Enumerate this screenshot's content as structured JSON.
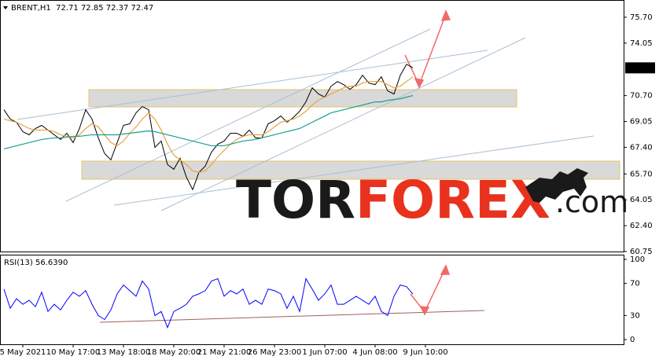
{
  "chart_data": [
    {
      "type": "line",
      "title": "BRENT,H1  72.71 72.85 72.37 72.47",
      "categories": [
        null,
        null,
        null,
        "5 May 2021",
        null,
        null,
        null,
        null,
        null,
        null,
        null,
        "10 May 17:00",
        null,
        null,
        null,
        null,
        null,
        null,
        null,
        "13 May 18:00",
        null,
        null,
        null,
        null,
        null,
        null,
        null,
        "18 May 20:00",
        null,
        null,
        null,
        null,
        null,
        null,
        null,
        "21 May 21:00",
        null,
        null,
        null,
        null,
        null,
        null,
        null,
        "26 May 23:00",
        null,
        null,
        null,
        null,
        null,
        null,
        null,
        "1 Jun 07:00",
        null,
        null,
        null,
        null,
        null,
        null,
        null,
        "4 Jun 08:00",
        null,
        null,
        null,
        null,
        null,
        null,
        null,
        "9 Jun 10:00"
      ],
      "series": [
        {
          "color": "#000000",
          "values": [
            69.8,
            69.2,
            69.0,
            68.4,
            68.2,
            68.6,
            68.8,
            68.5,
            68.2,
            67.9,
            68.3,
            67.7,
            68.6,
            69.8,
            69.2,
            68.0,
            67.0,
            66.6,
            67.7,
            68.8,
            68.9,
            69.6,
            70.0,
            69.8,
            67.4,
            67.8,
            66.3,
            66.0,
            66.7,
            65.5,
            64.7,
            65.8,
            66.2,
            67.1,
            67.6,
            67.8,
            68.3,
            68.3,
            68.1,
            68.5,
            68.0,
            68.0,
            68.9,
            69.1,
            69.4,
            69.0,
            69.3,
            69.7,
            70.3,
            71.2,
            70.8,
            70.6,
            71.3,
            71.6,
            71.4,
            71.1,
            71.4,
            72.0,
            71.5,
            71.4,
            71.9,
            71.0,
            70.8,
            72.0,
            72.7,
            72.47,
            null,
            null
          ]
        },
        {
          "color": "#e8a33c",
          "values": [
            69.2,
            69.1,
            69.0,
            68.8,
            68.6,
            68.5,
            68.5,
            68.5,
            68.4,
            68.2,
            68.1,
            68.0,
            68.2,
            68.6,
            68.9,
            68.7,
            68.2,
            67.7,
            67.5,
            67.8,
            68.3,
            68.7,
            69.2,
            69.6,
            69.2,
            68.5,
            67.6,
            66.9,
            66.6,
            66.3,
            65.9,
            65.8,
            65.9,
            66.3,
            66.8,
            67.2,
            67.6,
            67.9,
            68.1,
            68.2,
            68.2,
            68.2,
            68.4,
            68.7,
            69.0,
            69.1,
            69.2,
            69.4,
            69.7,
            70.1,
            70.4,
            70.6,
            70.8,
            71.0,
            71.2,
            71.3,
            71.3,
            71.5,
            71.6,
            71.6,
            71.6,
            71.4,
            71.2,
            71.3,
            71.6,
            71.9,
            null,
            null
          ]
        },
        {
          "color": "#1a9e8f",
          "values": [
            67.3,
            67.4,
            67.5,
            67.6,
            67.7,
            67.8,
            67.9,
            67.95,
            68.0,
            68.0,
            68.05,
            68.1,
            68.1,
            68.15,
            68.2,
            68.2,
            68.2,
            68.2,
            68.2,
            68.25,
            68.3,
            68.35,
            68.4,
            68.45,
            68.4,
            68.3,
            68.2,
            68.1,
            68.0,
            67.9,
            67.8,
            67.7,
            67.6,
            67.5,
            67.5,
            67.5,
            67.6,
            67.7,
            67.8,
            67.85,
            67.9,
            68.0,
            68.1,
            68.2,
            68.3,
            68.4,
            68.5,
            68.6,
            68.8,
            69.0,
            69.2,
            69.4,
            69.6,
            69.7,
            69.8,
            69.9,
            70.0,
            70.1,
            70.2,
            70.3,
            70.3,
            70.4,
            70.45,
            70.5,
            70.6,
            70.7,
            null,
            null
          ]
        }
      ],
      "current_price": 72.47,
      "ylim": [
        60.75,
        76.7
      ],
      "yticks": [
        {
          "value": 75.7,
          "label": "75.70"
        },
        74.05,
        {
          "value": 70.7,
          "label": "70.70"
        },
        69.05,
        {
          "value": 67.4,
          "label": "67.40"
        },
        {
          "value": 65.7,
          "label": "65.70"
        },
        64.05,
        {
          "value": 62.4,
          "label": "62.40"
        },
        60.75
      ],
      "watermark": [
        "TOR",
        "FOREX",
        ".com"
      ]
    },
    {
      "type": "line",
      "title": "RSI(13) 56.6390",
      "series": [
        {
          "color": "#0000ff",
          "values": [
            63,
            39,
            51,
            44,
            49,
            41,
            59,
            35,
            44,
            37,
            49,
            59,
            54,
            61,
            44,
            30,
            25,
            37,
            57,
            68,
            61,
            54,
            73,
            63,
            30,
            35,
            15,
            35,
            39,
            44,
            54,
            57,
            61,
            73,
            76,
            54,
            61,
            57,
            63,
            44,
            49,
            44,
            63,
            61,
            57,
            39,
            54,
            35,
            76,
            63,
            49,
            57,
            68,
            44,
            44,
            49,
            54,
            49,
            44,
            54,
            35,
            30,
            54,
            68,
            66,
            56.64,
            null,
            null
          ]
        }
      ],
      "ylim": [
        0,
        100
      ],
      "yticks": [
        0,
        30,
        70,
        100
      ]
    }
  ]
}
